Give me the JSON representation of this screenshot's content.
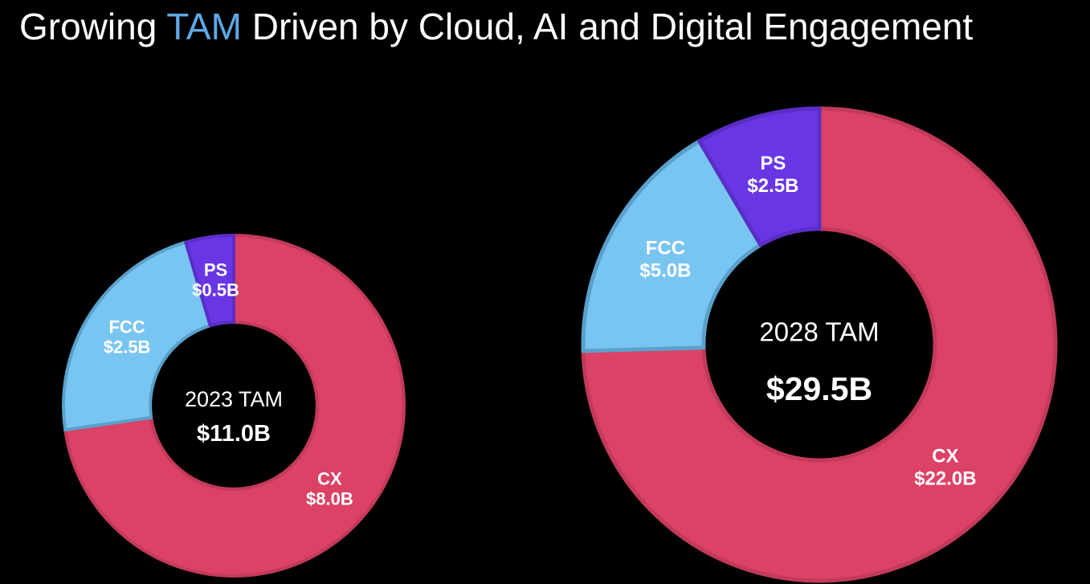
{
  "background_color": "#000000",
  "title": {
    "pre": "Growing ",
    "highlight": "TAM",
    "post": " Driven by Cloud, AI and Digital Engagement",
    "text_color": "#ffffff",
    "highlight_color": "#5fa9e6"
  },
  "chart_data": [
    {
      "type": "pie",
      "subtype": "donut",
      "title": "2023 TAM",
      "center_label_line1": "2023 TAM",
      "center_label_line2": "$11.0B",
      "total": 11.0,
      "order": "clockwise-from-top",
      "segments": [
        {
          "label": "CX",
          "value": 8.0,
          "value_label": "$8.0B",
          "color": "#db4265",
          "border_color": "#c23a59"
        },
        {
          "label": "FCC",
          "value": 2.5,
          "value_label": "$2.5B",
          "color": "#79c5f2",
          "border_color": "#59a1cb"
        },
        {
          "label": "PS",
          "value": 0.5,
          "value_label": "$0.5B",
          "color": "#6936e6",
          "border_color": "#5a2ec6"
        }
      ]
    },
    {
      "type": "pie",
      "subtype": "donut",
      "title": "2028 TAM",
      "center_label_line1": "2028 TAM",
      "center_label_line2": "$29.5B",
      "total": 29.5,
      "order": "clockwise-from-top",
      "segments": [
        {
          "label": "CX",
          "value": 22.0,
          "value_label": "$22.0B",
          "color": "#db4265",
          "border_color": "#c23a59"
        },
        {
          "label": "FCC",
          "value": 5.0,
          "value_label": "$5.0B",
          "color": "#79c5f2",
          "border_color": "#59a1cb"
        },
        {
          "label": "PS",
          "value": 2.5,
          "value_label": "$2.5B",
          "color": "#6936e6",
          "border_color": "#5a2ec6"
        }
      ]
    }
  ]
}
